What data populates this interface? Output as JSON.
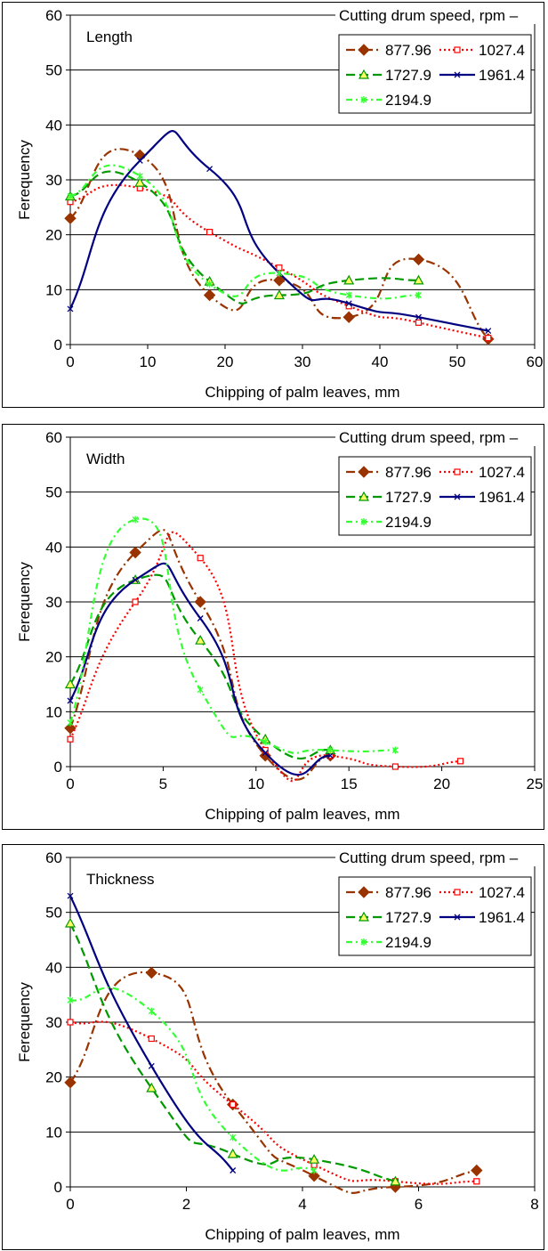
{
  "chart_data": [
    {
      "type": "line",
      "annotation": "Length",
      "xlabel": "Chipping of palm leaves, mm",
      "ylabel": "Ferequency",
      "xlim": [
        0,
        60
      ],
      "ylim": [
        0,
        60
      ],
      "xticks": [
        0,
        10,
        20,
        30,
        40,
        50,
        60
      ],
      "yticks": [
        0,
        10,
        20,
        30,
        40,
        50,
        60
      ],
      "grid": "horizontal",
      "legend_title": "Cutting drum speed, rpm",
      "legend_position": "top-right",
      "series": [
        {
          "name": "877.96",
          "color": "#993300",
          "marker": "diamond",
          "dash": "long-dash-dot",
          "x": [
            0,
            9,
            18,
            27,
            36,
            45,
            54
          ],
          "y": [
            23,
            34.5,
            9,
            11.7,
            5,
            15.5,
            1
          ]
        },
        {
          "name": "1027.4",
          "color": "#ff0000",
          "marker": "square",
          "dash": "dot",
          "x": [
            0,
            9,
            18,
            27,
            36,
            45,
            54
          ],
          "y": [
            26,
            28.5,
            20.5,
            14,
            7,
            4,
            1.2
          ]
        },
        {
          "name": "1727.9",
          "color": "#009900",
          "marker": "triangle",
          "dash": "long-dash",
          "x": [
            0,
            9,
            18,
            27,
            36,
            45
          ],
          "y": [
            27,
            29.5,
            11.5,
            9,
            11.7,
            11.7
          ]
        },
        {
          "name": "1961.4",
          "color": "#000080",
          "marker": "x",
          "dash": "solid",
          "x": [
            0,
            9,
            18,
            27,
            36,
            45,
            54
          ],
          "y": [
            6.5,
            33.5,
            32,
            13,
            7.5,
            5,
            2.5
          ]
        },
        {
          "name": "2194.9",
          "color": "#33ff33",
          "marker": "star",
          "dash": "dash-dot",
          "x": [
            0,
            9,
            18,
            27,
            36,
            45
          ],
          "y": [
            27,
            30.7,
            11,
            13,
            9,
            9
          ]
        }
      ]
    },
    {
      "type": "line",
      "annotation": "Width",
      "xlabel": "Chipping of palm leaves, mm",
      "ylabel": "Ferequency",
      "xlim": [
        0,
        25
      ],
      "ylim": [
        0,
        60
      ],
      "xticks": [
        0,
        5,
        10,
        15,
        20,
        25
      ],
      "yticks": [
        0,
        10,
        20,
        30,
        40,
        50,
        60
      ],
      "grid": "horizontal",
      "legend_title": "Cutting drum speed, rpm",
      "legend_position": "top-right",
      "series": [
        {
          "name": "877.96",
          "color": "#993300",
          "marker": "diamond",
          "dash": "long-dash-dot",
          "x": [
            0,
            3.5,
            7,
            10.5,
            14
          ],
          "y": [
            7,
            39,
            30,
            2,
            2
          ]
        },
        {
          "name": "1027.4",
          "color": "#ff0000",
          "marker": "square",
          "dash": "dot",
          "x": [
            0,
            3.5,
            7,
            10.5,
            14,
            17.5,
            21
          ],
          "y": [
            5,
            30,
            38,
            3,
            2,
            0,
            1
          ]
        },
        {
          "name": "1727.9",
          "color": "#009900",
          "marker": "triangle",
          "dash": "long-dash",
          "x": [
            0,
            3.5,
            7,
            10.5,
            14
          ],
          "y": [
            15,
            34,
            23,
            5,
            3
          ]
        },
        {
          "name": "1961.4",
          "color": "#000080",
          "marker": "x",
          "dash": "solid",
          "x": [
            0,
            3.5,
            7,
            10.5,
            14
          ],
          "y": [
            12,
            34,
            27,
            2.5,
            2
          ]
        },
        {
          "name": "2194.9",
          "color": "#33ff33",
          "marker": "star",
          "dash": "dash-dot",
          "x": [
            0,
            3.5,
            7,
            10.5,
            14,
            17.5
          ],
          "y": [
            8,
            45,
            14,
            4.5,
            3,
            3
          ]
        }
      ]
    },
    {
      "type": "line",
      "annotation": "Thickness",
      "xlabel": "Chipping of palm leaves, mm",
      "ylabel": "Ferequency",
      "xlim": [
        0,
        8
      ],
      "ylim": [
        0,
        60
      ],
      "xticks": [
        0,
        2,
        4,
        6,
        8
      ],
      "yticks": [
        0,
        10,
        20,
        30,
        40,
        50,
        60
      ],
      "grid": "horizontal",
      "legend_title": "Cutting drum speed, rpm",
      "legend_position": "top-right",
      "series": [
        {
          "name": "877.96",
          "color": "#993300",
          "marker": "diamond",
          "dash": "long-dash-dot",
          "x": [
            0,
            1.4,
            2.8,
            4.2,
            5.6,
            7
          ],
          "y": [
            19,
            39,
            15,
            2,
            0,
            3
          ]
        },
        {
          "name": "1027.4",
          "color": "#ff0000",
          "marker": "square",
          "dash": "dot",
          "x": [
            0,
            1.4,
            2.8,
            4.2,
            5.6,
            7
          ],
          "y": [
            30,
            27,
            15,
            4,
            1,
            1
          ]
        },
        {
          "name": "1727.9",
          "color": "#009900",
          "marker": "triangle",
          "dash": "long-dash",
          "x": [
            0,
            1.4,
            2.8,
            4.2,
            5.6
          ],
          "y": [
            48,
            18,
            6,
            5,
            1
          ]
        },
        {
          "name": "1961.4",
          "color": "#000080",
          "marker": "x",
          "dash": "solid",
          "x": [
            0,
            1.4,
            2.8
          ],
          "y": [
            53,
            22,
            3
          ]
        },
        {
          "name": "2194.9",
          "color": "#33ff33",
          "marker": "star",
          "dash": "dash-dot",
          "x": [
            0,
            1.4,
            2.8,
            4.2
          ],
          "y": [
            34,
            32,
            9,
            3
          ]
        }
      ]
    }
  ]
}
